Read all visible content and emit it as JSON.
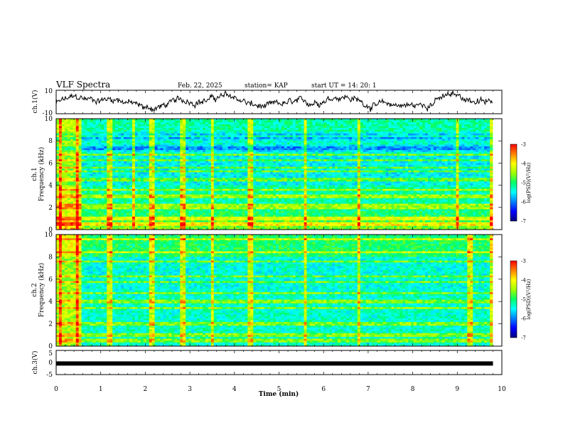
{
  "header": {
    "title": "VLF Spectra",
    "date": "Feb. 22, 2025",
    "station": "station= KAP",
    "start": "start  UT =  14: 20: 1"
  },
  "colors": {
    "waveform": "#000000",
    "colormap": [
      "#00007f",
      "#0000ff",
      "#0080ff",
      "#00ffff",
      "#00ff66",
      "#a0ff00",
      "#ffff00",
      "#ff8000",
      "#ff0000"
    ],
    "ch3_bar": "#000000"
  },
  "chart_data": [
    {
      "id": "ch1_waveform",
      "type": "line",
      "ylabel": "ch.1(V)",
      "ylim": [
        -10,
        10
      ],
      "y_ticks": [
        "10",
        "-10"
      ],
      "xlim": [
        0,
        10
      ],
      "x_extent_min": 9.8,
      "description_values": "noisy voltage trace fluctuating roughly between -9 and 9 V over 0 to 9.8 min"
    },
    {
      "id": "ch1_spectrogram",
      "type": "heatmap",
      "ylabel": "ch.1\nFrequency (kHz)",
      "ylabel_line1": "ch.1",
      "ylabel_line2": "Frequency (kHz)",
      "ylim": [
        0,
        10
      ],
      "y_ticks": [
        "0",
        "2",
        "4",
        "6",
        "8",
        "10"
      ],
      "xlim": [
        0,
        10
      ],
      "colorbar": {
        "label": "log(PSD)(V²/Hz)",
        "range": [
          -7,
          -3
        ],
        "ticks": [
          "-3",
          "-4",
          "-5",
          "-6",
          "-7"
        ]
      },
      "bands_khz": [
        0.5,
        1.0,
        2.0,
        2.3,
        3.0,
        3.6,
        4.5,
        5.2,
        5.6,
        6.3,
        6.8,
        8.4
      ],
      "vertical_events_min": [
        0.1,
        0.5,
        1.2,
        1.75,
        2.15,
        2.85,
        3.5,
        4.35,
        5.6,
        6.8,
        9.0,
        9.8
      ]
    },
    {
      "id": "ch2_spectrogram",
      "type": "heatmap",
      "ylabel_line1": "ch.2",
      "ylabel_line2": "Frequency (kHz)",
      "ylim": [
        0,
        10
      ],
      "y_ticks": [
        "0",
        "2",
        "4",
        "6",
        "8",
        "10"
      ],
      "xlim": [
        0,
        10
      ],
      "colorbar": {
        "label": "log(PSD)(V²/Hz)",
        "range": [
          -7,
          -3
        ],
        "ticks": [
          "-3",
          "-4",
          "-5",
          "-6",
          "-7"
        ]
      },
      "bands_khz": [
        0.5,
        1.0,
        2.0,
        3.4,
        4.0,
        4.8,
        5.8,
        6.3,
        7.6,
        8.4,
        9.6
      ],
      "vertical_events_min": [
        0.1,
        0.5,
        1.2,
        2.15,
        2.85,
        3.5,
        4.35,
        5.6,
        6.8,
        9.3,
        9.8
      ]
    },
    {
      "id": "ch3_waveform",
      "type": "line",
      "ylabel": "ch.3(V)",
      "ylim": [
        -5,
        5
      ],
      "y_ticks": [
        "5",
        "0",
        "-5"
      ],
      "xlim": [
        0,
        10
      ],
      "xlabel": "Time (min)",
      "x_ticks": [
        "0",
        "1",
        "2",
        "3",
        "4",
        "5",
        "6",
        "7",
        "8",
        "9",
        "10"
      ],
      "constant_value_v": -0.4,
      "x_extent_min": 9.8
    }
  ]
}
